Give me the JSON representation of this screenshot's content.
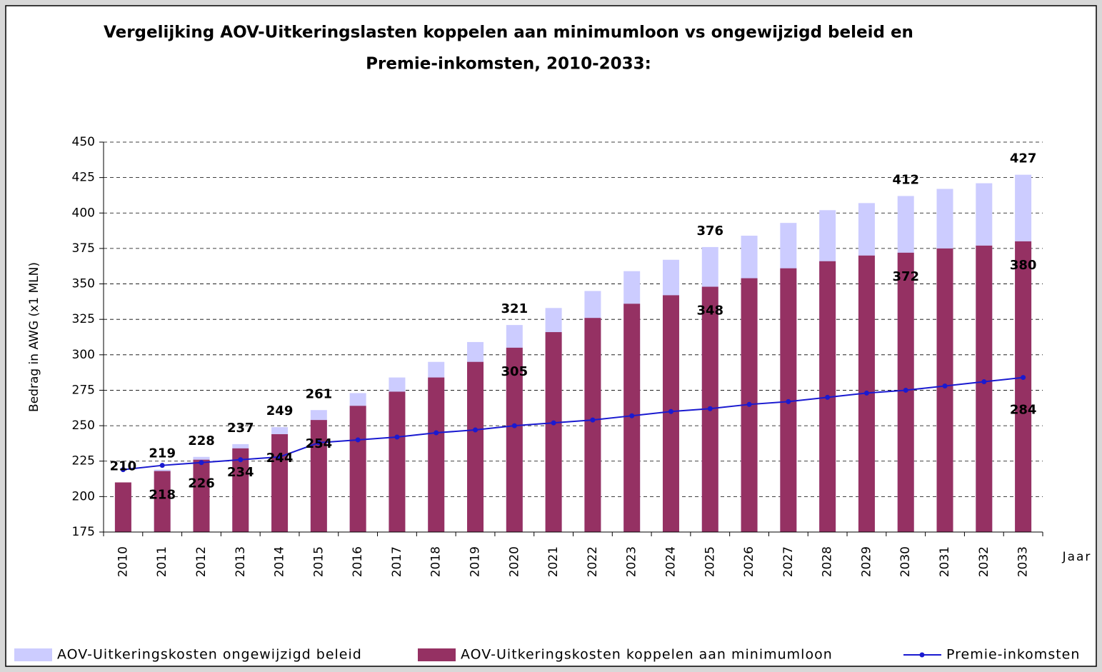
{
  "chart_data": {
    "type": "bar",
    "title": "Vergelijking AOV-Uitkeringslasten koppelen aan minimumloon vs ongewijzigd beleid en",
    "title_line_2": "Premie-inkomsten, 2010-2033:",
    "y_label": "Bedrag in AWG (x1 MLN)",
    "x_label": "Jaar",
    "categories": [
      "2010",
      "2011",
      "2012",
      "2013",
      "2014",
      "2015",
      "2016",
      "2017",
      "2018",
      "2019",
      "2020",
      "2021",
      "2022",
      "2023",
      "2024",
      "2025",
      "2026",
      "2027",
      "2028",
      "2029",
      "2030",
      "2031",
      "2032",
      "2033"
    ],
    "series": [
      {
        "name": "AOV-Uitkeringskosten ongewijzigd beleid",
        "color": "#ccccff",
        "values": [
          210,
          219,
          228,
          237,
          249,
          261,
          273,
          284,
          295,
          309,
          321,
          333,
          345,
          359,
          367,
          376,
          384,
          393,
          402,
          407,
          412,
          417,
          421,
          427
        ],
        "value_labels": [
          "210",
          "219",
          "228",
          "237",
          "249",
          "261",
          null,
          null,
          null,
          null,
          "321",
          null,
          null,
          null,
          null,
          "376",
          null,
          null,
          null,
          null,
          "412",
          null,
          null,
          "427"
        ]
      },
      {
        "name": "AOV-Uitkeringskosten koppelen aan minimumloon",
        "color": "#953163",
        "values": [
          210,
          218,
          226,
          234,
          244,
          254,
          264,
          274,
          284,
          295,
          305,
          316,
          326,
          336,
          342,
          348,
          354,
          361,
          366,
          370,
          372,
          375,
          377,
          380
        ],
        "value_labels": [
          null,
          "218",
          "226",
          "234",
          "244",
          "254",
          null,
          null,
          null,
          null,
          "305",
          null,
          null,
          null,
          null,
          "348",
          null,
          null,
          null,
          null,
          "372",
          null,
          null,
          "380"
        ]
      },
      {
        "name": "Premie-inkomsten",
        "type": "line",
        "color": "#1a1ad0",
        "values": [
          219,
          222,
          224,
          226,
          228,
          238,
          240,
          242,
          245,
          247,
          250,
          252,
          254,
          257,
          260,
          262,
          265,
          267,
          270,
          273,
          275,
          278,
          281,
          284
        ],
        "value_labels": [
          null,
          null,
          null,
          null,
          null,
          null,
          null,
          null,
          null,
          null,
          null,
          null,
          null,
          null,
          null,
          null,
          null,
          null,
          null,
          null,
          null,
          null,
          null,
          "284"
        ]
      }
    ],
    "ylim": [
      175,
      450
    ],
    "yticks": [
      175,
      200,
      225,
      250,
      275,
      300,
      325,
      350,
      375,
      400,
      425,
      450
    ],
    "grid": true,
    "legend": "bottom"
  }
}
